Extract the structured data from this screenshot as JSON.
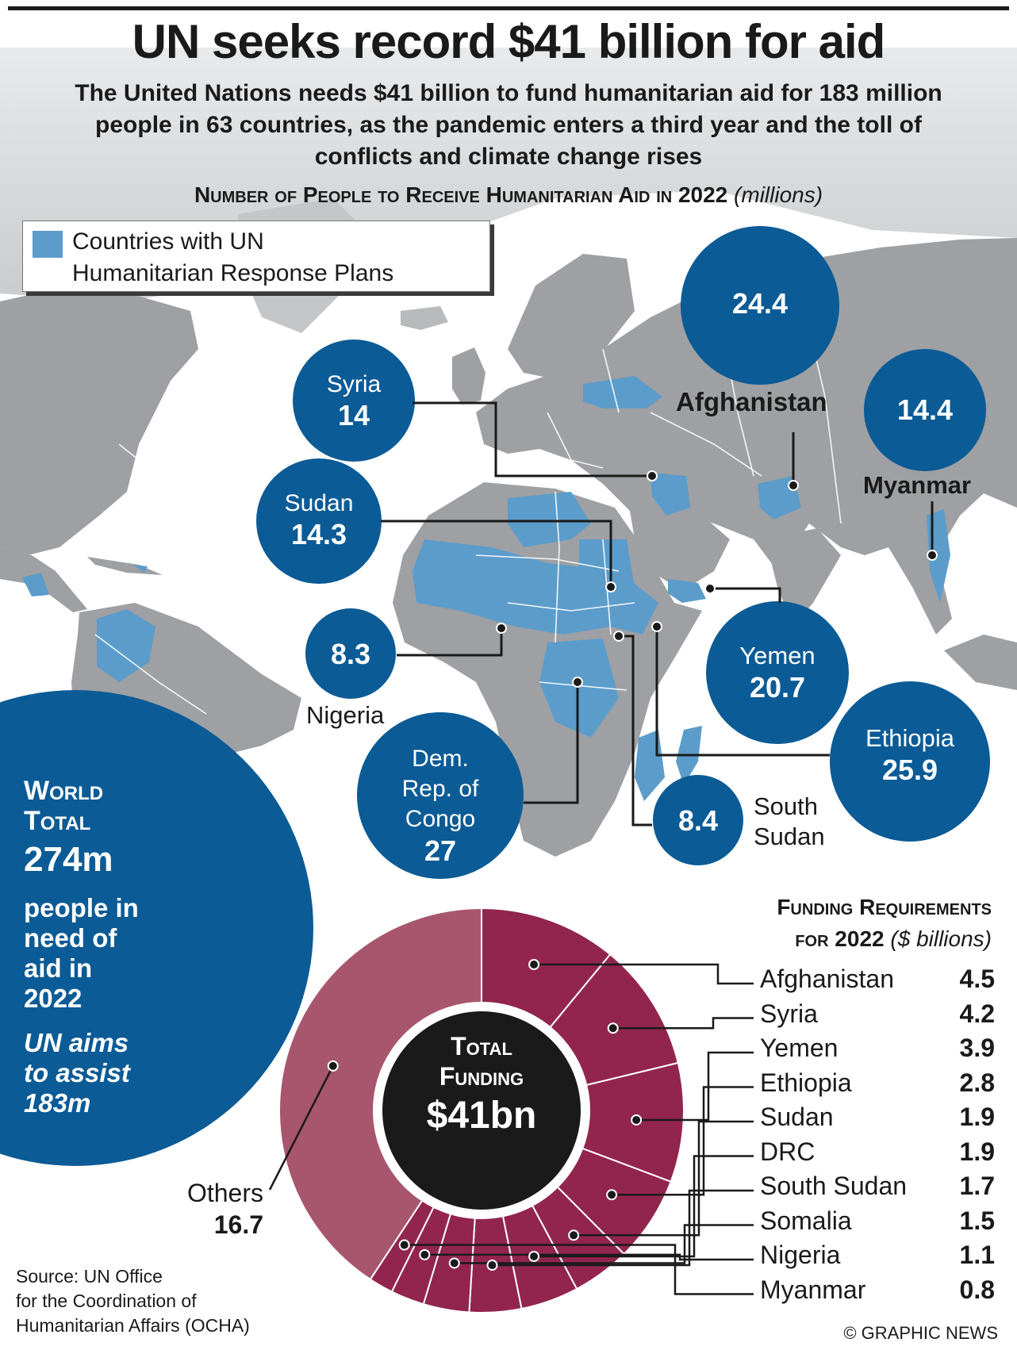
{
  "title": "UN seeks record $41 billion for aid",
  "subtitle": "The United Nations needs $41 billion to fund humanitarian aid for 183 million people in 63 countries, as the pandemic enters a third year and the toll of conflicts and climate change rises",
  "map": {
    "title": "Number of People to Receive Humanitarian Aid in 2022",
    "unit": "(millions)",
    "legend_label_1": "Countries with UN",
    "legend_label_2": "Humanitarian Response Plans",
    "colors": {
      "plan_countries": "#5b9ccb",
      "land": "#9ea0a3",
      "borders": "#ffffff",
      "bubbles": "#0b5b96",
      "ocean": "#ffffff"
    }
  },
  "world_total": {
    "head_1": "World",
    "head_2": "Total",
    "value": "274m",
    "text": "people in need of aid in 2022",
    "aim": "UN aims to assist 183m"
  },
  "donut": {
    "center_1": "Total",
    "center_2": "Funding",
    "center_value": "$41bn",
    "colors": {
      "countries": "#92254e",
      "others": "#a8566d",
      "center": "#1a1a1a"
    }
  },
  "funding": {
    "title_1": "Funding Requirements",
    "title_2": "for 2022",
    "unit": "($ billions)"
  },
  "others_label": "Others",
  "others_value": "16.7",
  "source_1": "Source: UN Office",
  "source_2": "for the Coordination of",
  "source_3": "Humanitarian Affairs (OCHA)",
  "credit": "© GRAPHIC NEWS",
  "chart_data": [
    {
      "type": "scatter",
      "title": "Number of People to Receive Humanitarian Aid in 2022",
      "unit": "millions",
      "points": [
        {
          "country": "Afghanistan",
          "value": 24.4
        },
        {
          "country": "Myanmar",
          "value": 14.4
        },
        {
          "country": "Syria",
          "value": 14.0
        },
        {
          "country": "Sudan",
          "value": 14.3
        },
        {
          "country": "Nigeria",
          "value": 8.3
        },
        {
          "country": "Yemen",
          "value": 20.7
        },
        {
          "country": "Ethiopia",
          "value": 25.9
        },
        {
          "country": "Dem. Rep. of Congo",
          "value": 27.0
        },
        {
          "country": "South Sudan",
          "value": 8.4
        }
      ]
    },
    {
      "type": "pie",
      "title": "Funding Requirements for 2022",
      "unit": "$ billions",
      "total_label": "$41bn",
      "slices": [
        {
          "label": "Afghanistan",
          "value": 4.5,
          "display": "4.5"
        },
        {
          "label": "Syria",
          "value": 4.2,
          "display": "4.2"
        },
        {
          "label": "Yemen",
          "value": 3.9,
          "display": "3.9"
        },
        {
          "label": "Ethiopia",
          "value": 2.8,
          "display": "2.8"
        },
        {
          "label": "Sudan",
          "value": 1.9,
          "display": "1.9"
        },
        {
          "label": "DRC",
          "value": 1.9,
          "display": "1.9"
        },
        {
          "label": "South Sudan",
          "value": 1.7,
          "display": "1.7"
        },
        {
          "label": "Somalia",
          "value": 1.5,
          "display": "1.5"
        },
        {
          "label": "Nigeria",
          "value": 1.1,
          "display": "1.1"
        },
        {
          "label": "Myanmar",
          "value": 0.8,
          "display": "0.8"
        },
        {
          "label": "Others",
          "value": 16.7,
          "display": "16.7"
        }
      ]
    }
  ]
}
